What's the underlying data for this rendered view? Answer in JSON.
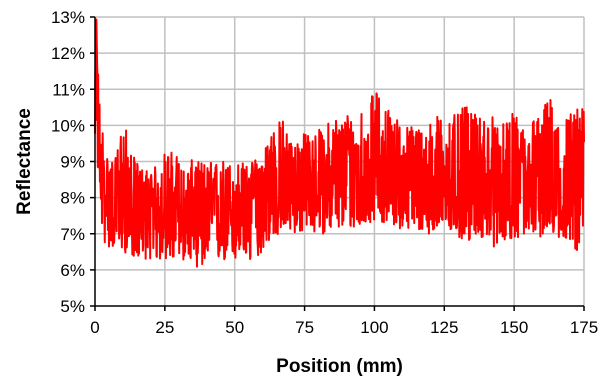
{
  "chart_data": {
    "type": "line",
    "xlabel": "Position (mm)",
    "ylabel": "Reflectance",
    "xlim": [
      0,
      175
    ],
    "ylim": [
      5,
      13
    ],
    "x_ticks": [
      0,
      25,
      50,
      75,
      100,
      125,
      150,
      175
    ],
    "x_tick_labels": [
      "0",
      "25",
      "50",
      "75",
      "100",
      "125",
      "150",
      "175"
    ],
    "y_ticks": [
      5,
      6,
      7,
      8,
      9,
      10,
      11,
      12,
      13
    ],
    "y_tick_labels": [
      "5%",
      "6%",
      "7%",
      "8%",
      "9%",
      "10%",
      "11%",
      "12%",
      "13%"
    ],
    "grid": true,
    "legend": "none",
    "series": [
      {
        "color": "#ff0000",
        "x": [
          0,
          0.5,
          1,
          1.5,
          2,
          3,
          4,
          5,
          7.5,
          10,
          12.5,
          15,
          17.5,
          20,
          22.5,
          25,
          27.5,
          30,
          32.5,
          35,
          37.5,
          40,
          42.5,
          45,
          47.5,
          50,
          52.5,
          55,
          57.5,
          60,
          62.5,
          65,
          67.5,
          70,
          72.5,
          75,
          77.5,
          80,
          82.5,
          85,
          87.5,
          90,
          92.5,
          95,
          97.5,
          100,
          102.5,
          105,
          107.5,
          110,
          112.5,
          115,
          117.5,
          120,
          122.5,
          125,
          127.5,
          130,
          132.5,
          135,
          137.5,
          140,
          142.5,
          145,
          147.5,
          150,
          152.5,
          155,
          157.5,
          160,
          162.5,
          165,
          167.5,
          170,
          172.5,
          175
        ],
        "mean": [
          9.0,
          12.5,
          10.5,
          9.5,
          8.8,
          8.3,
          8.0,
          7.9,
          7.8,
          7.7,
          7.6,
          7.6,
          7.6,
          7.5,
          7.5,
          7.5,
          7.5,
          7.4,
          7.5,
          7.5,
          7.5,
          7.5,
          7.6,
          7.6,
          7.6,
          7.7,
          7.8,
          7.8,
          7.9,
          8.0,
          8.1,
          8.2,
          8.3,
          8.3,
          8.3,
          8.3,
          8.4,
          8.4,
          8.4,
          8.4,
          8.4,
          8.5,
          8.6,
          8.7,
          8.8,
          8.9,
          8.8,
          8.7,
          8.6,
          8.5,
          8.4,
          8.3,
          8.3,
          8.3,
          8.3,
          8.2,
          8.2,
          8.2,
          8.2,
          8.2,
          8.2,
          8.3,
          8.3,
          8.3,
          8.3,
          8.3,
          8.3,
          8.3,
          8.3,
          8.3,
          8.3,
          8.3,
          8.3,
          8.3,
          8.3,
          8.3
        ],
        "min": [
          8.5,
          10.5,
          8.5,
          8.0,
          7.5,
          6.8,
          6.6,
          6.6,
          6.6,
          6.5,
          6.4,
          6.3,
          6.3,
          6.3,
          6.2,
          6.3,
          6.2,
          6.2,
          6.3,
          6.2,
          6.0,
          6.1,
          6.2,
          6.2,
          6.2,
          6.2,
          6.3,
          6.1,
          6.3,
          6.5,
          6.8,
          6.9,
          7.0,
          7.0,
          7.0,
          7.0,
          7.0,
          7.0,
          7.0,
          7.1,
          7.1,
          7.1,
          7.1,
          7.1,
          7.2,
          7.4,
          7.3,
          7.2,
          7.2,
          7.1,
          7.1,
          7.0,
          7.0,
          7.0,
          7.0,
          7.0,
          7.0,
          6.9,
          6.5,
          7.0,
          6.9,
          6.8,
          6.6,
          6.8,
          6.8,
          6.9,
          6.8,
          6.9,
          6.9,
          6.9,
          6.9,
          6.9,
          6.8,
          6.8,
          6.5,
          6.8
        ],
        "max": [
          11.0,
          13.0,
          11.8,
          10.9,
          10.2,
          9.9,
          9.3,
          9.1,
          9.1,
          10.4,
          9.3,
          9.0,
          8.8,
          8.8,
          8.9,
          9.3,
          9.3,
          9.2,
          8.7,
          9.1,
          9.0,
          9.0,
          9.0,
          9.1,
          9.0,
          9.0,
          9.0,
          8.9,
          9.1,
          9.2,
          10.0,
          10.1,
          10.2,
          9.6,
          9.7,
          9.8,
          9.8,
          9.9,
          9.9,
          10.4,
          10.2,
          10.4,
          10.4,
          10.5,
          10.5,
          11.0,
          10.8,
          10.5,
          10.3,
          10.0,
          10.0,
          10.1,
          10.0,
          10.1,
          10.3,
          10.4,
          10.3,
          10.3,
          10.6,
          10.3,
          10.3,
          10.3,
          10.3,
          10.0,
          10.1,
          10.4,
          10.0,
          10.1,
          10.3,
          10.4,
          10.9,
          10.3,
          10.2,
          10.4,
          10.5,
          10.5
        ]
      }
    ]
  }
}
